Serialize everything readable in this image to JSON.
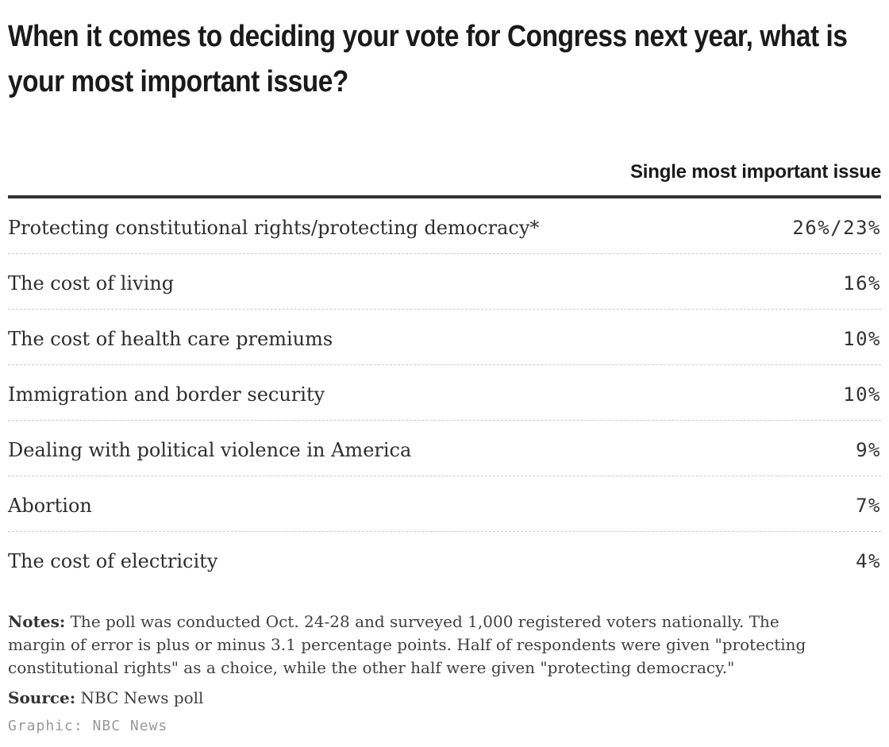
{
  "title": "When it comes to deciding your vote for Congress next year, what is your most important issue?",
  "table": {
    "header": {
      "issue_col": "",
      "value_col": "Single most important issue"
    },
    "rows": [
      {
        "label": "Protecting constitutional rights/protecting democracy*",
        "value": "26%/23%"
      },
      {
        "label": "The cost of living",
        "value": "16%"
      },
      {
        "label": "The cost of health care premiums",
        "value": "10%"
      },
      {
        "label": "Immigration and border security",
        "value": "10%"
      },
      {
        "label": "Dealing with political violence in America",
        "value": "9%"
      },
      {
        "label": "Abortion",
        "value": "7%"
      },
      {
        "label": "The cost of electricity",
        "value": "4%"
      }
    ]
  },
  "footer": {
    "notes_label": "Notes:",
    "notes_text": " The poll was conducted Oct. 24-28 and surveyed 1,000 registered voters nationally. The margin of error is plus or minus 3.1 percentage points. Half of respondents were given \"protecting constitutional rights\" as a choice, while the other half were given \"protecting democracy.\"",
    "source_label": "Source:",
    "source_text": " NBC News poll",
    "credit": "Graphic: NBC News"
  },
  "colors": {
    "title_text": "#1a1a1a",
    "header_rule": "#333333",
    "row_label_text": "#2d2d2d",
    "row_value_text": "#333333",
    "row_separator": "#cccccc",
    "notes_text": "#3f3f3f",
    "credit_text": "#999999",
    "background": "#ffffff"
  },
  "chart_data": {
    "type": "table",
    "title": "When it comes to deciding your vote for Congress next year, what is your most important issue?",
    "columns": [
      "Issue",
      "Single most important issue"
    ],
    "categories": [
      "Protecting constitutional rights/protecting democracy*",
      "The cost of living",
      "The cost of health care premiums",
      "Immigration and border security",
      "Dealing with political violence in America",
      "Abortion",
      "The cost of electricity"
    ],
    "values": [
      "26%/23%",
      "16%",
      "10%",
      "10%",
      "9%",
      "7%",
      "4%"
    ],
    "values_numeric": [
      [
        26,
        23
      ],
      [
        16
      ],
      [
        10
      ],
      [
        10
      ],
      [
        9
      ],
      [
        7
      ],
      [
        4
      ]
    ],
    "notes": "The poll was conducted Oct. 24-28 and surveyed 1,000 registered voters nationally. The margin of error is plus or minus 3.1 percentage points. Half of respondents were given \"protecting constitutional rights\" as a choice, while the other half were given \"protecting democracy.\"",
    "source": "NBC News poll",
    "credit": "Graphic: NBC News",
    "legend_position": "none",
    "grid": "dashed-row-separators"
  }
}
